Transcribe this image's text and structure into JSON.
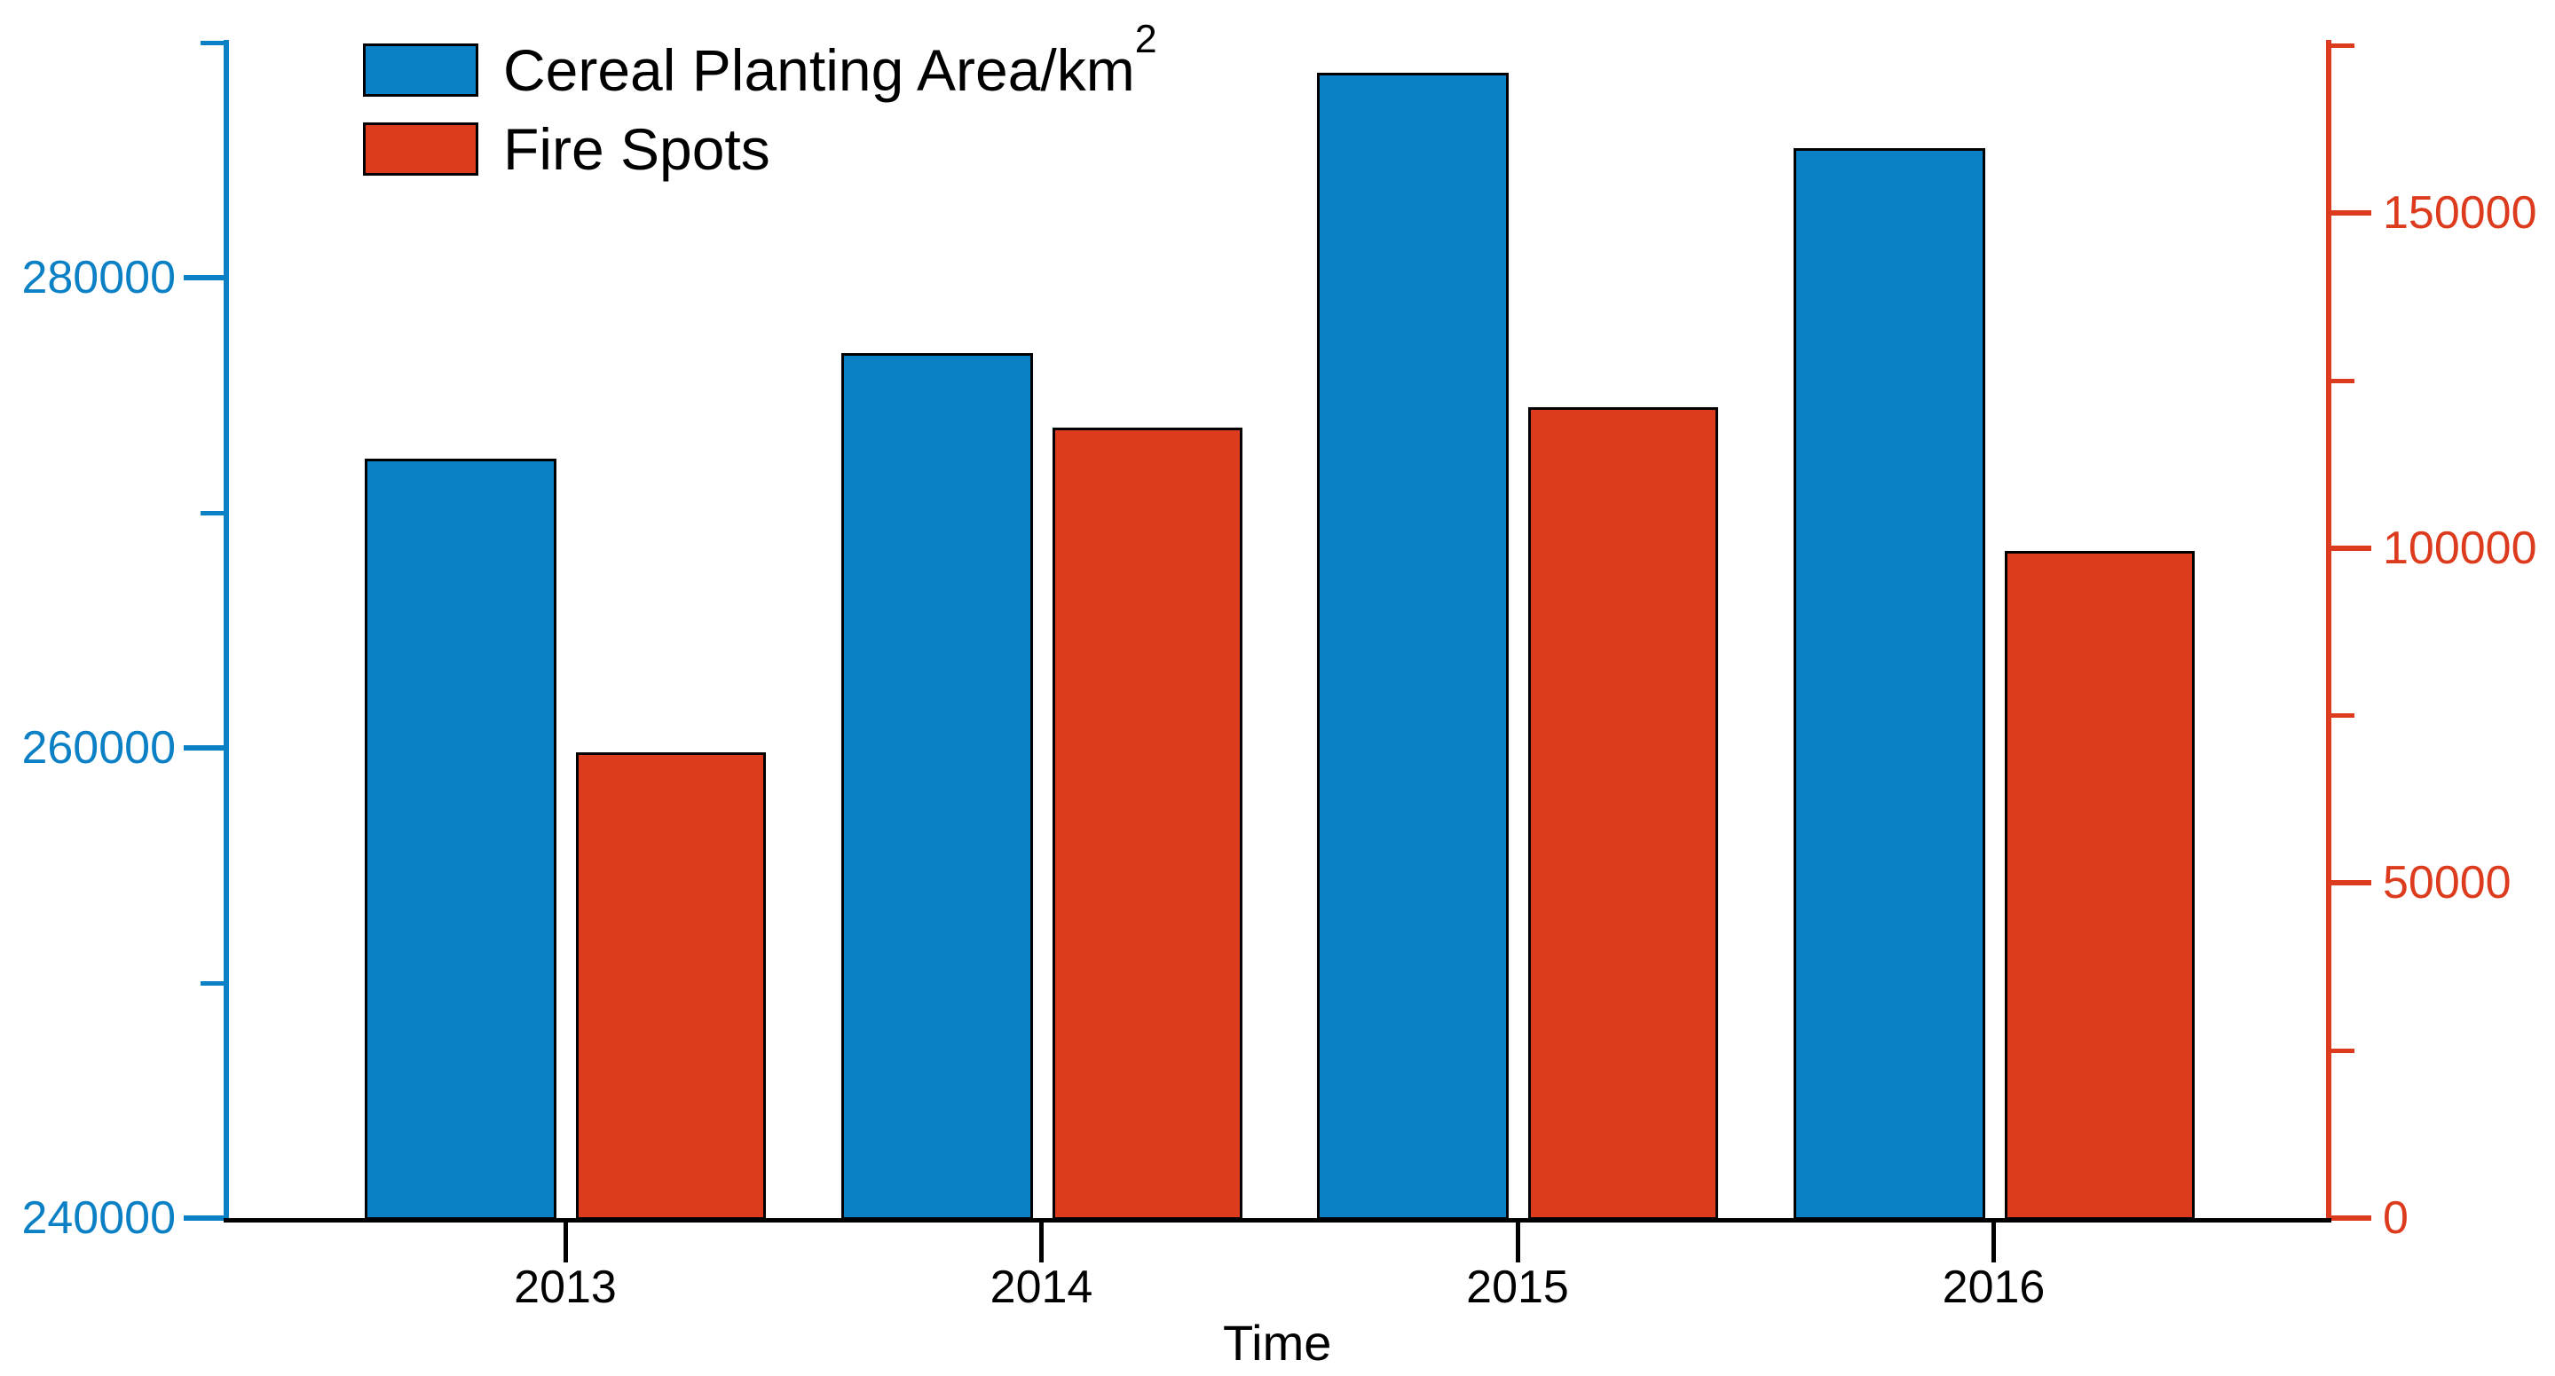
{
  "chart_data": {
    "type": "bar",
    "title": "",
    "xlabel": "Time",
    "categories": [
      "2013",
      "2014",
      "2015",
      "2016"
    ],
    "series": [
      {
        "name": "Cereal Planting Area/km²",
        "axis": "left",
        "color": "#0c80c4",
        "values": [
          272300,
          276800,
          288700,
          285500
        ]
      },
      {
        "name": "Fire Spots",
        "axis": "right",
        "color": "#dd3b1d",
        "values": [
          69500,
          118000,
          121000,
          99500
        ]
      }
    ],
    "left_axis": {
      "color": "#0c80c4",
      "range": [
        240000,
        291000
      ],
      "major_ticks": [
        240000,
        260000,
        280000
      ],
      "minor_ticks": [
        250000,
        270000,
        290000
      ]
    },
    "right_axis": {
      "color": "#dd3b1d",
      "range": [
        0,
        179000
      ],
      "major_ticks": [
        0,
        50000,
        100000,
        150000
      ],
      "minor_ticks": [
        25000,
        75000,
        125000,
        175000
      ]
    },
    "x_axis": {
      "color": "#000000",
      "tick_labels": [
        "2013",
        "2014",
        "2015",
        "2016"
      ]
    },
    "legend": {
      "position": "top-left",
      "items": [
        "Cereal Planting Area/km²",
        "Fire Spots"
      ]
    },
    "grid": false
  },
  "legend": {
    "item1_label": "Cereal Planting Area/km",
    "item1_sup": "2",
    "item2_label": "Fire Spots"
  },
  "axes": {
    "x_title": "Time"
  }
}
